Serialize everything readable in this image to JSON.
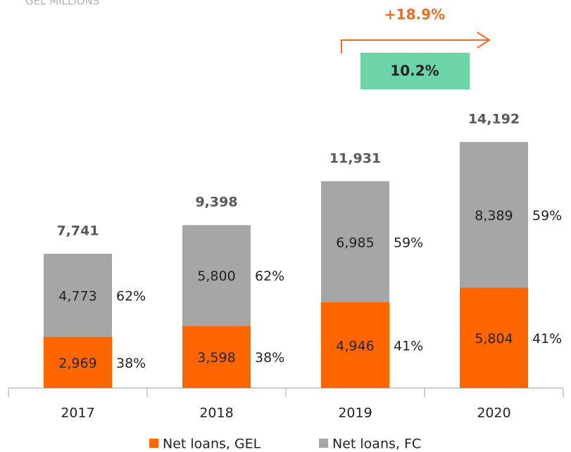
{
  "chart_data": {
    "type": "stacked_bar",
    "subtitle": "GEL MILLIONS",
    "categories": [
      "2017",
      "2018",
      "2019",
      "2020"
    ],
    "series": [
      {
        "name": "Net loans, GEL",
        "color": "#ff6600",
        "values": [
          2969,
          3598,
          4946,
          5804
        ],
        "value_labels": [
          "2,969",
          "3,598",
          "4,946",
          "5,804"
        ],
        "percent_labels": [
          "38%",
          "38%",
          "41%",
          "41%"
        ]
      },
      {
        "name": "Net loans, FC",
        "color": "#a6a6a6",
        "values": [
          4773,
          5800,
          6985,
          8389
        ],
        "value_labels": [
          "4,773",
          "5,800",
          "6,985",
          "8,389"
        ],
        "percent_labels": [
          "62%",
          "62%",
          "59%",
          "59%"
        ]
      }
    ],
    "totals": {
      "values": [
        7741,
        9398,
        11931,
        14192
      ],
      "value_labels": [
        "7,741",
        "9,398",
        "11,931",
        "14,192"
      ]
    },
    "annotations": {
      "growth": "+18.9%",
      "box": "10.2%"
    }
  }
}
